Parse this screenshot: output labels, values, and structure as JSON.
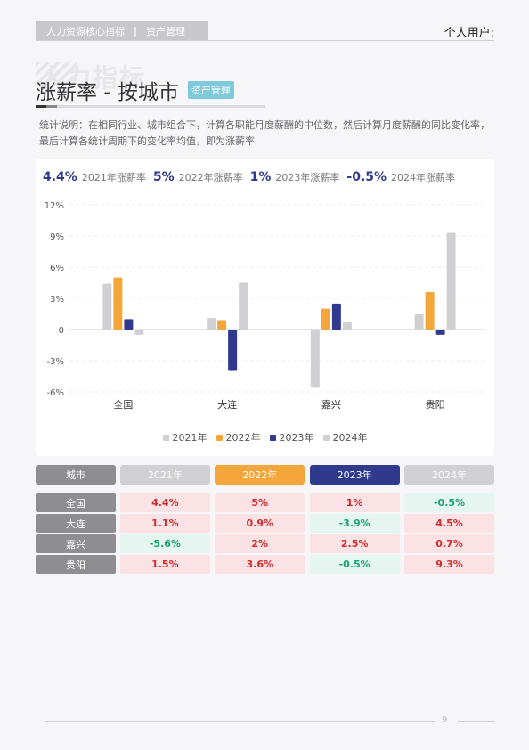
{
  "header": {
    "crumb_primary": "人力资源核心指标",
    "crumb_sep": "|",
    "crumb_secondary": "资产管理",
    "user_label": "个人用户:"
  },
  "title": {
    "watermark": "人力指标",
    "text": "涨薪率 - 按城市",
    "tag": "资产管理"
  },
  "note": "统计说明：在相同行业、城市组合下，计算各职能月度薪酬的中位数，然后计算月度薪酬的同比变化率，最后计算各统计周期下的变化率均值，即为涨薪率",
  "summary": [
    {
      "value": "4.4%",
      "label": "2021年涨薪率"
    },
    {
      "value": "5%",
      "label": "2022年涨薪率"
    },
    {
      "value": "1%",
      "label": "2023年涨薪率"
    },
    {
      "value": "-0.5%",
      "label": "2024年涨薪率"
    }
  ],
  "colors": {
    "s2021": "#d0d0d3",
    "s2022": "#f5a63a",
    "s2023": "#2f3a8f",
    "s2024": "#d0d0d3",
    "accent_dark": "#2f3a8f",
    "positive": "#d22b2b",
    "negative": "#1aa36e"
  },
  "chart_data": {
    "type": "bar",
    "categories": [
      "全国",
      "大连",
      "嘉兴",
      "贵阳"
    ],
    "series": [
      {
        "name": "2021年",
        "values": [
          4.4,
          1.1,
          -5.6,
          1.5
        ]
      },
      {
        "name": "2022年",
        "values": [
          5,
          0.9,
          2,
          3.6
        ]
      },
      {
        "name": "2023年",
        "values": [
          1,
          -3.9,
          2.5,
          -0.5
        ]
      },
      {
        "name": "2024年",
        "values": [
          -0.5,
          4.5,
          0.7,
          9.3
        ]
      }
    ],
    "yticks": [
      "12%",
      "9%",
      "6%",
      "3%",
      "0",
      "-3%",
      "-6%"
    ],
    "ylim": [
      -6,
      12
    ],
    "grid": true,
    "legend": "bottom"
  },
  "table": {
    "headers": [
      "城市",
      "2021年",
      "2022年",
      "2023年",
      "2024年"
    ],
    "rows": [
      {
        "city": "全国",
        "values": [
          "4.4%",
          "5%",
          "1%",
          "-0.5%"
        ]
      },
      {
        "city": "大连",
        "values": [
          "1.1%",
          "0.9%",
          "-3.9%",
          "4.5%"
        ]
      },
      {
        "city": "嘉兴",
        "values": [
          "-5.6%",
          "2%",
          "2.5%",
          "0.7%"
        ]
      },
      {
        "city": "贵阳",
        "values": [
          "1.5%",
          "3.6%",
          "-0.5%",
          "9.3%"
        ]
      }
    ]
  },
  "footer": {
    "page": "9"
  }
}
